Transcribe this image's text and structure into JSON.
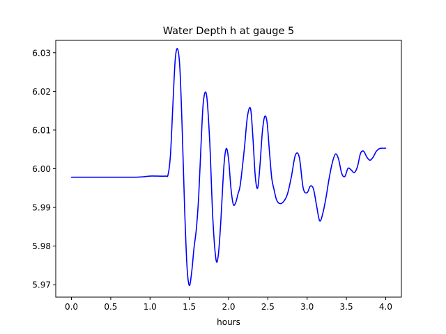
{
  "chart_data": {
    "type": "line",
    "title": "Water Depth h at gauge 5",
    "xlabel": "hours",
    "ylabel": "",
    "xlim": [
      -0.2,
      4.2
    ],
    "ylim": [
      5.9668,
      6.0332
    ],
    "xticks": [
      0.0,
      0.5,
      1.0,
      1.5,
      2.0,
      2.5,
      3.0,
      3.5,
      4.0
    ],
    "xtick_labels": [
      "0.0",
      "0.5",
      "1.0",
      "1.5",
      "2.0",
      "2.5",
      "3.0",
      "3.5",
      "4.0"
    ],
    "yticks": [
      5.97,
      5.98,
      5.99,
      6.0,
      6.01,
      6.02,
      6.03
    ],
    "ytick_labels": [
      "5.97",
      "5.98",
      "5.99",
      "6.00",
      "6.01",
      "6.02",
      "6.03"
    ],
    "grid": false,
    "legend": "none",
    "series": [
      {
        "color": "#0000ff",
        "x": [
          0.0,
          0.5,
          0.8,
          0.9,
          1.0,
          1.1,
          1.2,
          1.23,
          1.26,
          1.29,
          1.32,
          1.35,
          1.38,
          1.41,
          1.44,
          1.47,
          1.5,
          1.53,
          1.56,
          1.59,
          1.62,
          1.65,
          1.68,
          1.72,
          1.76,
          1.8,
          1.84,
          1.87,
          1.9,
          1.94,
          1.97,
          2.0,
          2.03,
          2.06,
          2.09,
          2.12,
          2.15,
          2.2,
          2.24,
          2.28,
          2.31,
          2.34,
          2.37,
          2.4,
          2.43,
          2.46,
          2.49,
          2.52,
          2.55,
          2.58,
          2.61,
          2.65,
          2.7,
          2.75,
          2.8,
          2.85,
          2.9,
          2.95,
          3.0,
          3.04,
          3.08,
          3.12,
          3.16,
          3.2,
          3.24,
          3.28,
          3.32,
          3.36,
          3.4,
          3.44,
          3.48,
          3.52,
          3.56,
          3.6,
          3.64,
          3.68,
          3.72,
          3.76,
          3.8,
          3.84,
          3.88,
          3.92,
          3.96,
          4.0
        ],
        "y": [
          5.9978,
          5.9978,
          5.9978,
          5.9979,
          5.9981,
          5.9981,
          5.9981,
          5.9985,
          6.0035,
          6.016,
          6.028,
          6.031,
          6.026,
          6.01,
          5.99,
          5.975,
          5.9698,
          5.9732,
          5.9795,
          5.9845,
          5.993,
          6.0065,
          6.0175,
          6.019,
          6.007,
          5.987,
          5.9765,
          5.9778,
          5.986,
          6.0005,
          6.0052,
          6.0025,
          5.995,
          5.9908,
          5.9912,
          5.9935,
          5.996,
          6.005,
          6.0135,
          6.0155,
          6.008,
          5.998,
          5.995,
          6.001,
          6.0095,
          6.0135,
          6.012,
          6.0045,
          5.9975,
          5.9945,
          5.992,
          5.991,
          5.9915,
          5.9935,
          5.998,
          6.0035,
          6.003,
          5.995,
          5.9938,
          5.9955,
          5.9948,
          5.9905,
          5.9865,
          5.9885,
          5.9925,
          5.9975,
          6.0015,
          6.0038,
          6.0025,
          5.9988,
          5.998,
          6.0001,
          5.9997,
          5.999,
          6.0005,
          6.004,
          6.0045,
          6.003,
          6.0022,
          6.003,
          6.0045,
          6.0052,
          6.0053,
          6.0053
        ]
      }
    ]
  }
}
